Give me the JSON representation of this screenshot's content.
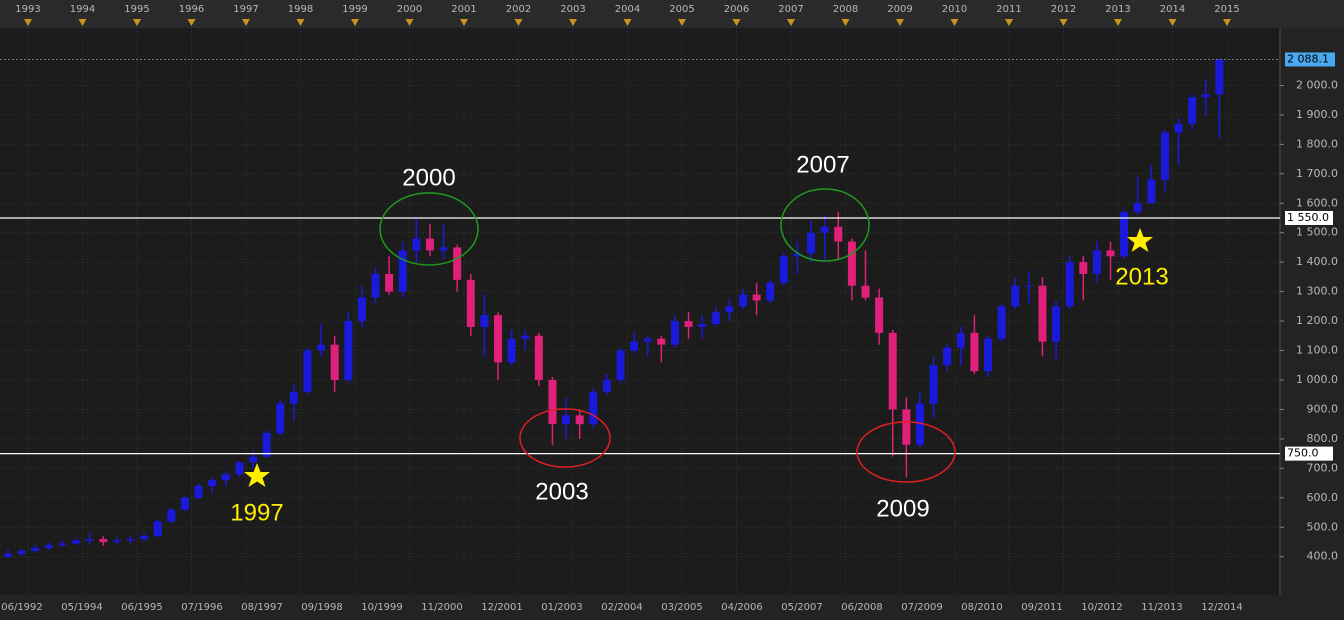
{
  "chart_data": {
    "type": "candlestick",
    "top_timeline": [
      "1993",
      "1994",
      "1995",
      "1996",
      "1997",
      "1998",
      "1999",
      "2000",
      "2001",
      "2002",
      "2003",
      "2004",
      "2005",
      "2006",
      "2007",
      "2008",
      "2009",
      "2010",
      "2011",
      "2012",
      "2013",
      "2014",
      "2015"
    ],
    "categories": [
      "06/1992",
      "05/1994",
      "06/1995",
      "07/1996",
      "08/1997",
      "09/1998",
      "10/1999",
      "11/2000",
      "12/2001",
      "01/2003",
      "02/2004",
      "03/2005",
      "04/2006",
      "05/2007",
      "06/2008",
      "07/2009",
      "08/2010",
      "09/2011",
      "10/2012",
      "11/2013",
      "12/2014"
    ],
    "up_color": "#1a1adc",
    "down_color": "#e0207a",
    "ylim": [
      270,
      2195
    ],
    "yticks": [
      {
        "value": 400,
        "label": "400.0"
      },
      {
        "value": 500,
        "label": "500.0"
      },
      {
        "value": 600,
        "label": "600.0"
      },
      {
        "value": 700,
        "label": "700.0"
      },
      {
        "value": 800,
        "label": "800.0"
      },
      {
        "value": 900,
        "label": "900.0"
      },
      {
        "value": 1000,
        "label": "1 000.0"
      },
      {
        "value": 1100,
        "label": "1 100.0"
      },
      {
        "value": 1200,
        "label": "1 200.0"
      },
      {
        "value": 1300,
        "label": "1 300.0"
      },
      {
        "value": 1400,
        "label": "1 400.0"
      },
      {
        "value": 1500,
        "label": "1 500.0"
      },
      {
        "value": 1600,
        "label": "1 600.0"
      },
      {
        "value": 1700,
        "label": "1 700.0"
      },
      {
        "value": 1800,
        "label": "1 800.0"
      },
      {
        "value": 1900,
        "label": "1 900.0"
      },
      {
        "value": 2000,
        "label": "2 000.0"
      }
    ],
    "grid": true,
    "levels": [
      {
        "value": 1550,
        "label": "1 550.0"
      },
      {
        "value": 750,
        "label": "750.0"
      }
    ],
    "last_price": {
      "value": 2088.1,
      "label": "2 088.1"
    },
    "annotations": [
      "2000",
      "2003",
      "2007",
      "2009",
      "1997",
      "2013"
    ],
    "candles": [
      [
        400,
        425,
        395,
        410
      ],
      [
        410,
        428,
        402,
        420
      ],
      [
        420,
        440,
        415,
        430
      ],
      [
        430,
        448,
        422,
        440
      ],
      [
        440,
        455,
        432,
        445
      ],
      [
        445,
        465,
        440,
        455
      ],
      [
        455,
        482,
        440,
        460
      ],
      [
        460,
        470,
        438,
        450
      ],
      [
        450,
        465,
        442,
        455
      ],
      [
        455,
        470,
        445,
        460
      ],
      [
        460,
        480,
        455,
        470
      ],
      [
        470,
        525,
        465,
        520
      ],
      [
        520,
        565,
        515,
        560
      ],
      [
        560,
        605,
        555,
        600
      ],
      [
        600,
        650,
        595,
        640
      ],
      [
        640,
        670,
        615,
        660
      ],
      [
        660,
        690,
        640,
        680
      ],
      [
        680,
        725,
        670,
        720
      ],
      [
        720,
        760,
        700,
        740
      ],
      [
        740,
        830,
        735,
        820
      ],
      [
        820,
        930,
        810,
        920
      ],
      [
        920,
        985,
        860,
        960
      ],
      [
        960,
        1110,
        950,
        1100
      ],
      [
        1100,
        1190,
        1080,
        1120
      ],
      [
        1120,
        1150,
        960,
        1000
      ],
      [
        1000,
        1230,
        990,
        1200
      ],
      [
        1200,
        1320,
        1180,
        1280
      ],
      [
        1280,
        1380,
        1260,
        1360
      ],
      [
        1360,
        1420,
        1290,
        1300
      ],
      [
        1300,
        1470,
        1280,
        1440
      ],
      [
        1440,
        1550,
        1400,
        1480
      ],
      [
        1480,
        1530,
        1420,
        1440
      ],
      [
        1440,
        1530,
        1410,
        1450
      ],
      [
        1450,
        1460,
        1300,
        1340
      ],
      [
        1340,
        1360,
        1150,
        1180
      ],
      [
        1180,
        1290,
        1080,
        1220
      ],
      [
        1220,
        1230,
        1000,
        1060
      ],
      [
        1060,
        1170,
        1050,
        1140
      ],
      [
        1140,
        1170,
        1100,
        1150
      ],
      [
        1150,
        1160,
        980,
        1000
      ],
      [
        1000,
        1010,
        780,
        850
      ],
      [
        850,
        940,
        800,
        880
      ],
      [
        880,
        900,
        800,
        850
      ],
      [
        850,
        970,
        840,
        960
      ],
      [
        960,
        1020,
        950,
        1000
      ],
      [
        1000,
        1110,
        990,
        1100
      ],
      [
        1100,
        1160,
        1090,
        1130
      ],
      [
        1130,
        1150,
        1080,
        1140
      ],
      [
        1140,
        1150,
        1060,
        1120
      ],
      [
        1120,
        1220,
        1110,
        1200
      ],
      [
        1200,
        1230,
        1140,
        1180
      ],
      [
        1180,
        1220,
        1140,
        1190
      ],
      [
        1190,
        1245,
        1180,
        1230
      ],
      [
        1230,
        1275,
        1200,
        1250
      ],
      [
        1250,
        1310,
        1240,
        1290
      ],
      [
        1290,
        1330,
        1220,
        1270
      ],
      [
        1270,
        1340,
        1260,
        1330
      ],
      [
        1330,
        1430,
        1320,
        1420
      ],
      [
        1420,
        1470,
        1360,
        1430
      ],
      [
        1430,
        1540,
        1400,
        1500
      ],
      [
        1500,
        1560,
        1400,
        1520
      ],
      [
        1520,
        1570,
        1410,
        1470
      ],
      [
        1470,
        1480,
        1270,
        1320
      ],
      [
        1320,
        1440,
        1270,
        1280
      ],
      [
        1280,
        1310,
        1120,
        1160
      ],
      [
        1160,
        1170,
        740,
        900
      ],
      [
        900,
        940,
        670,
        780
      ],
      [
        780,
        960,
        770,
        920
      ],
      [
        920,
        1080,
        870,
        1050
      ],
      [
        1050,
        1120,
        1030,
        1110
      ],
      [
        1110,
        1180,
        1050,
        1160
      ],
      [
        1160,
        1220,
        1020,
        1030
      ],
      [
        1030,
        1150,
        1010,
        1140
      ],
      [
        1140,
        1260,
        1130,
        1250
      ],
      [
        1250,
        1350,
        1240,
        1320
      ],
      [
        1320,
        1370,
        1260,
        1320
      ],
      [
        1320,
        1350,
        1080,
        1130
      ],
      [
        1130,
        1270,
        1070,
        1250
      ],
      [
        1250,
        1420,
        1240,
        1400
      ],
      [
        1400,
        1420,
        1270,
        1360
      ],
      [
        1360,
        1470,
        1330,
        1440
      ],
      [
        1440,
        1470,
        1340,
        1420
      ],
      [
        1420,
        1580,
        1410,
        1570
      ],
      [
        1570,
        1690,
        1560,
        1600
      ],
      [
        1600,
        1730,
        1600,
        1680
      ],
      [
        1680,
        1850,
        1640,
        1840
      ],
      [
        1840,
        1890,
        1730,
        1870
      ],
      [
        1870,
        1970,
        1850,
        1960
      ],
      [
        1960,
        2020,
        1900,
        1970
      ],
      [
        1970,
        2093,
        1820,
        2088.1
      ]
    ]
  }
}
